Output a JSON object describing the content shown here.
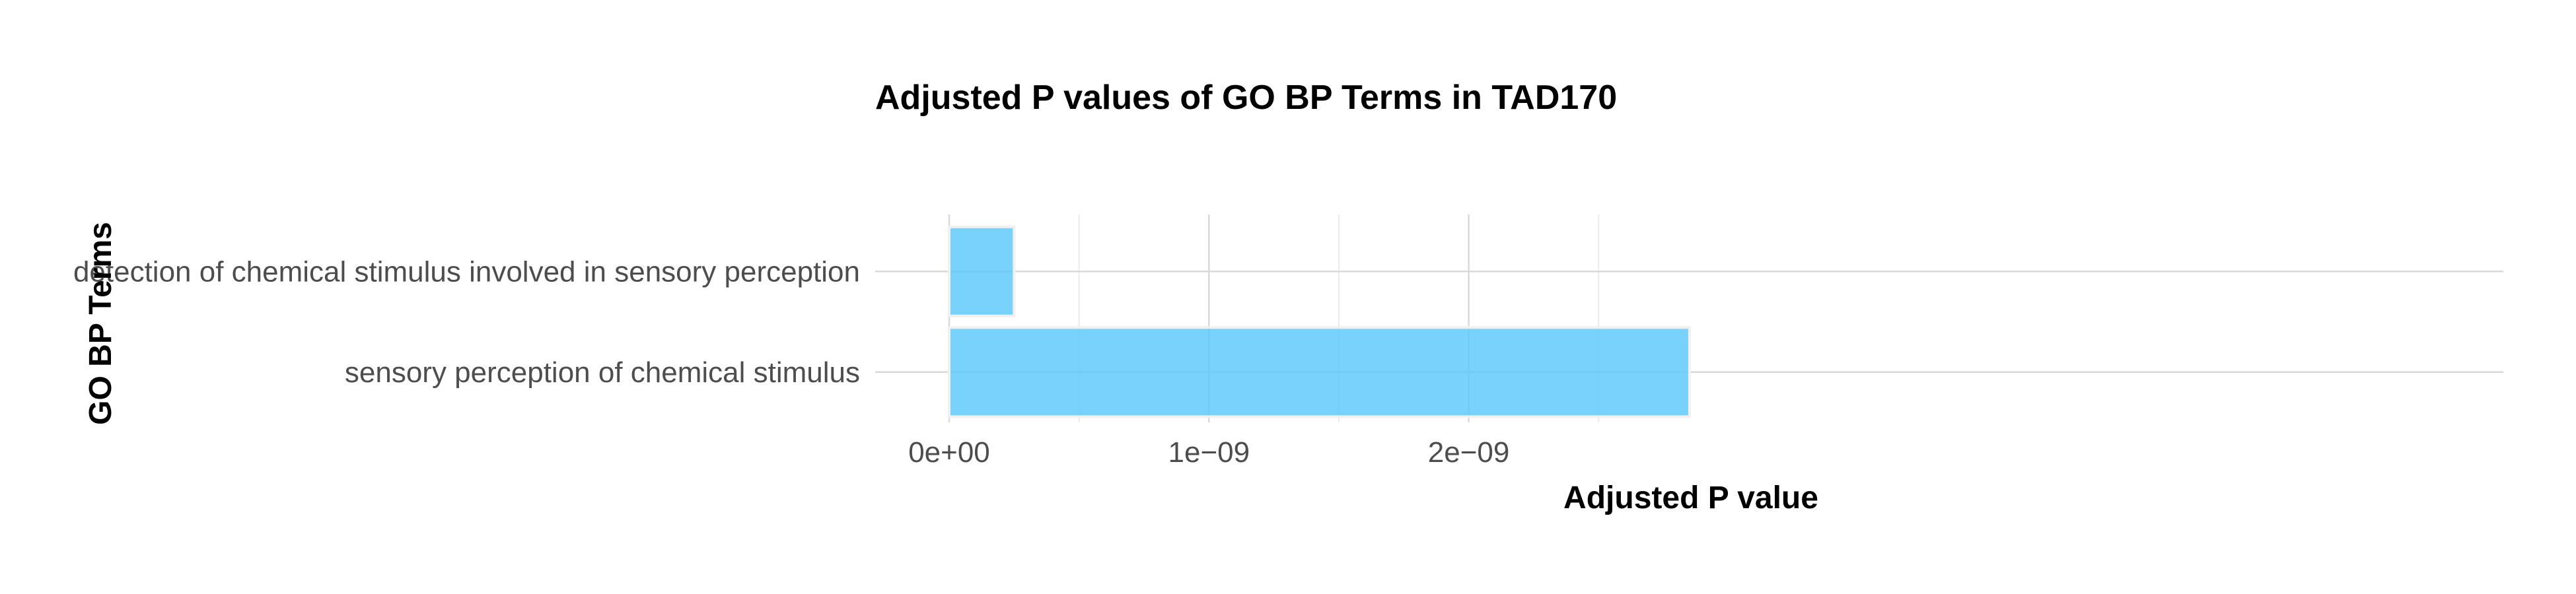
{
  "chart_data": {
    "type": "bar",
    "orientation": "horizontal",
    "title": "Adjusted P values of GO BP Terms in TAD170",
    "xlabel": "Adjusted P value",
    "ylabel": "GO BP Terms",
    "categories": [
      "detection of chemical stimulus involved in sensory perception",
      "sensory perception of chemical stimulus"
    ],
    "values": [
      2.5e-10,
      2.85e-09
    ],
    "xlim": [
      0,
      3e-09
    ],
    "xticks": [
      0,
      1e-09,
      2e-09
    ],
    "xtick_labels": [
      "0e+00",
      "1e−09",
      "2e−09"
    ],
    "grid": true,
    "bar_color": "#5bc8fb",
    "bar_opacity": 0.82
  }
}
